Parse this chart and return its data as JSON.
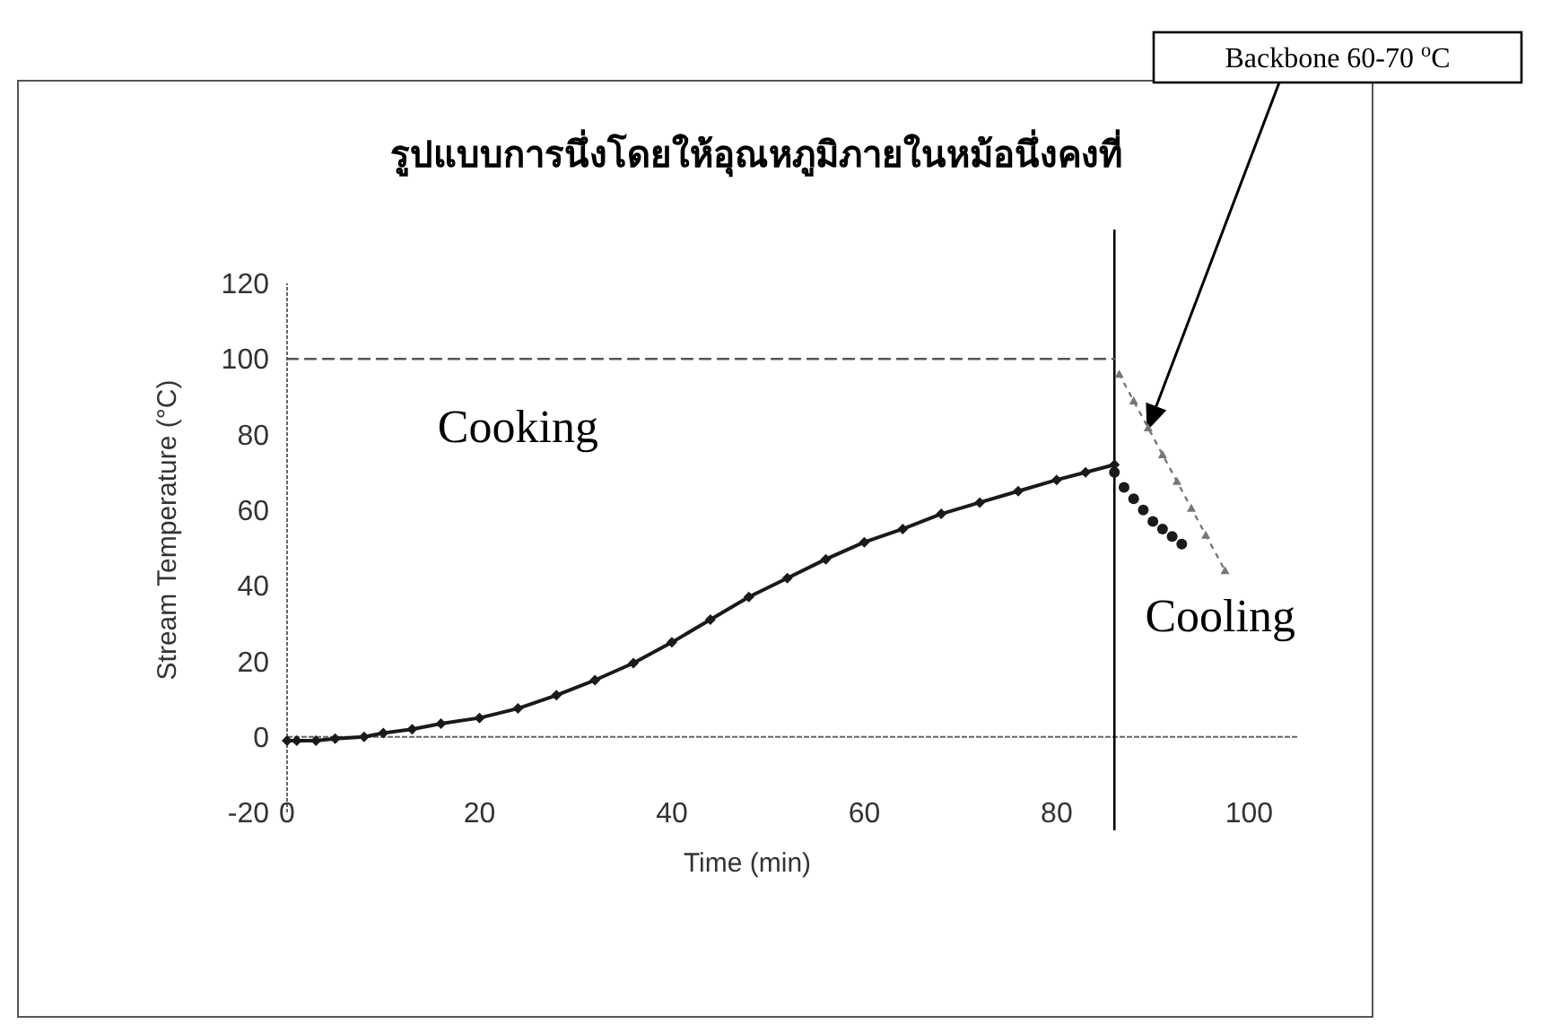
{
  "chart_data": {
    "type": "line",
    "title": "รูปแบบการนึ่งโดยให้อุณหภูมิภายในหม้อนึ่งคงที่",
    "xlabel": "Time (min)",
    "ylabel": "Stream Temperature (°C)",
    "xlim": [
      0,
      105
    ],
    "xticks": [
      0,
      20,
      40,
      60,
      80,
      100
    ],
    "ylim": [
      -20,
      120
    ],
    "yticks": [
      -20,
      0,
      20,
      40,
      60,
      80,
      100,
      120
    ],
    "series": [
      {
        "marker": "diamond",
        "color": "#1a1a1a",
        "x": [
          0,
          1,
          3,
          5,
          8,
          10,
          13,
          16,
          20,
          24,
          28,
          32,
          36,
          40,
          44,
          48,
          52,
          56,
          60,
          64,
          68,
          72,
          76,
          80,
          83,
          86
        ],
        "values": [
          -1,
          -1,
          -1,
          -0.5,
          0,
          1,
          2,
          3.5,
          5,
          7.5,
          11,
          15,
          19.5,
          25,
          31,
          37,
          42,
          47,
          51.5,
          55,
          59,
          62,
          65,
          68,
          70,
          72
        ]
      },
      {
        "type": "scatter",
        "marker": "circle",
        "color": "#1a1a1a",
        "x": [
          86,
          87,
          88,
          89,
          90,
          91,
          92,
          93
        ],
        "values": [
          70,
          66,
          63,
          60,
          57,
          55,
          53,
          51
        ]
      },
      {
        "type": "line",
        "line_style": "dotted",
        "marker": "triangle",
        "color": "#777777",
        "x": [
          86.5,
          88,
          89.5,
          91,
          92.5,
          94,
          95.5,
          97.5
        ],
        "values": [
          96,
          88.9,
          81.8,
          74.7,
          67.6,
          60.5,
          53.4,
          44
        ]
      },
      {
        "type": "line",
        "line_style": "dashed",
        "marker": "none",
        "color": "#555555",
        "x": [
          0,
          86
        ],
        "values": [
          100,
          100
        ]
      }
    ],
    "ref_lines": [
      {
        "axis": "x",
        "value": 86,
        "color": "#000000"
      }
    ],
    "annotations": [
      "Cooking",
      "Cooling",
      {
        "text": "Backbone 60-70 $^{o}$C",
        "x": 89.5,
        "y": 81.8
      }
    ]
  }
}
